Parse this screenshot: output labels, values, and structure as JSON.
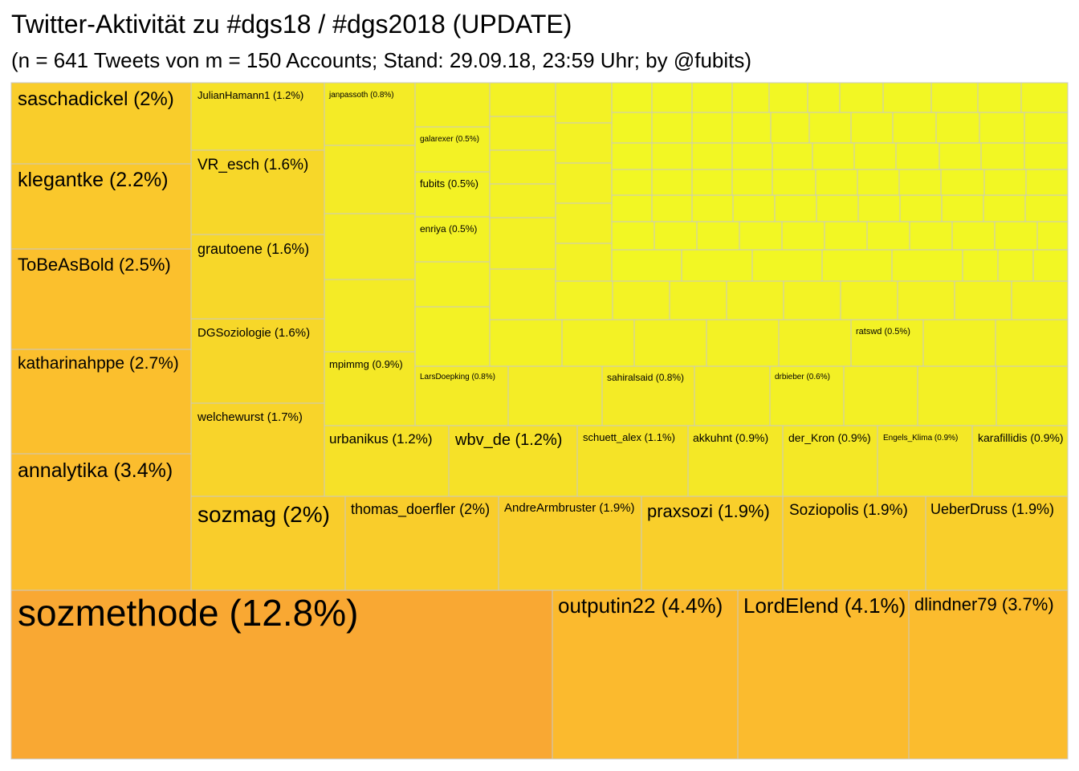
{
  "title": "Twitter-Aktivität zu #dgs18 / #dgs2018 (UPDATE)",
  "subtitle": "(n = 641 Tweets von m = 150 Accounts; Stand: 29.09.18, 23:59 Uhr; by @fubits)",
  "chart_data": {
    "type": "treemap",
    "color_scale": {
      "low": "#F2F724",
      "mid": "#FBC02D",
      "high": "#F9A833"
    },
    "border_color": "#C8C8C8",
    "nodes": [
      {
        "label": "sozmethode (12.8%)",
        "value": 12.8
      },
      {
        "label": "outputin22 (4.4%)",
        "value": 4.4
      },
      {
        "label": "LordElend (4.1%)",
        "value": 4.1
      },
      {
        "label": "dlindner79 (3.7%)",
        "value": 3.7
      },
      {
        "label": "annalytika (3.4%)",
        "value": 3.4
      },
      {
        "label": "katharinahppe (2.7%)",
        "value": 2.7
      },
      {
        "label": "ToBeAsBold (2.5%)",
        "value": 2.5
      },
      {
        "label": "klegantke (2.2%)",
        "value": 2.2
      },
      {
        "label": "saschadickel (2%)",
        "value": 2.0
      },
      {
        "label": "sozmag (2%)",
        "value": 2.0
      },
      {
        "label": "thomas_doerfler (2%)",
        "value": 2.0
      },
      {
        "label": "AndreArmbruster (1.9%)",
        "value": 1.9
      },
      {
        "label": "praxsozi (1.9%)",
        "value": 1.9
      },
      {
        "label": "Soziopolis (1.9%)",
        "value": 1.9
      },
      {
        "label": "UeberDruss (1.9%)",
        "value": 1.9
      },
      {
        "label": "welchewurst (1.7%)",
        "value": 1.7
      },
      {
        "label": "DGSoziologie (1.6%)",
        "value": 1.6
      },
      {
        "label": "grautoene (1.6%)",
        "value": 1.6
      },
      {
        "label": "VR_esch (1.6%)",
        "value": 1.6
      },
      {
        "label": "JulianHamann1 (1.2%)",
        "value": 1.2
      },
      {
        "label": "urbanikus (1.2%)",
        "value": 1.2
      },
      {
        "label": "wbv_de (1.2%)",
        "value": 1.2
      },
      {
        "label": "schuett_alex (1.1%)",
        "value": 1.1
      },
      {
        "label": "akkuhnt (0.9%)",
        "value": 0.9
      },
      {
        "label": "der_Kron (0.9%)",
        "value": 0.9
      },
      {
        "label": "Engels_Klima (0.9%)",
        "value": 0.9
      },
      {
        "label": "karafillidis (0.9%)",
        "value": 0.9
      },
      {
        "label": "mpimmg (0.9%)",
        "value": 0.9
      },
      {
        "label": "janpassoth (0.8%)",
        "value": 0.8
      },
      {
        "label": "LarsDoepking (0.8%)",
        "value": 0.8
      },
      {
        "label": "sahiralsaid (0.8%)",
        "value": 0.8
      },
      {
        "label": "drbieber (0.6%)",
        "value": 0.6
      },
      {
        "label": "galarexer (0.5%)",
        "value": 0.5
      },
      {
        "label": "fubits (0.5%)",
        "value": 0.5
      },
      {
        "label": "enriya (0.5%)",
        "value": 0.5
      },
      {
        "label": "ratswd (0.5%)",
        "value": 0.5
      }
    ]
  }
}
